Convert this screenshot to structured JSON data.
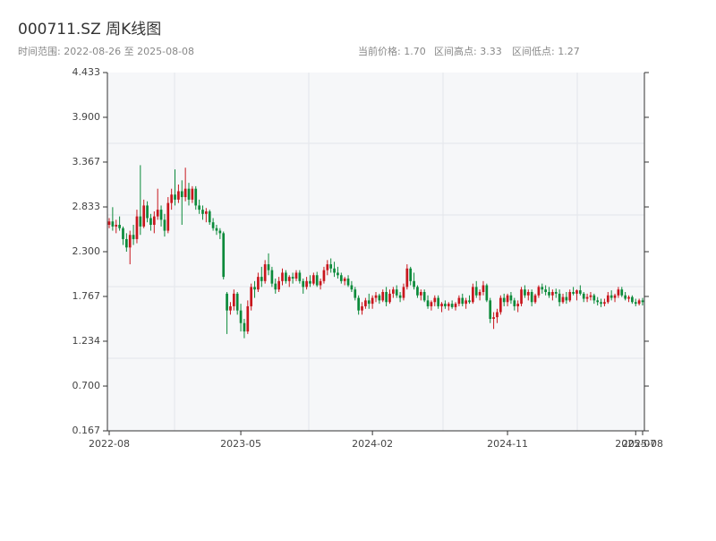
{
  "chart_data": {
    "type": "candlestick",
    "title": "000711.SZ 周K线图",
    "subtitle": "时间范围: 2022-08-26 至 2025-08-08",
    "stats": [
      "当前价格: 1.70",
      "区间高点: 3.33",
      "区间低点: 1.27"
    ],
    "up_color": "#c8161d",
    "down_color": "#0b8a3a",
    "ylim": [
      0.167,
      4.433
    ],
    "yticks": [
      0.167,
      {
        "value": 0.7,
        "label": "0.700"
      },
      1.234,
      1.767,
      {
        "value": 2.3,
        "label": "2.300"
      },
      2.833,
      3.367,
      {
        "value": 3.9,
        "label": "3.900"
      },
      4.433
    ],
    "xlim": [
      "2022-08-26",
      "2025-08-08"
    ],
    "xticks": [
      {
        "value": "2022-08-26",
        "label": "2022-08"
      },
      {
        "value": "2023-05-19",
        "label": "2023-05"
      },
      {
        "value": "2024-02-09",
        "label": "2024-02"
      },
      {
        "value": "2024-11-08",
        "label": "2024-11"
      },
      {
        "value": "2025-07-25",
        "label": "2025-07"
      },
      {
        "value": "2025-08-08",
        "label": "2025-08"
      }
    ],
    "x": [
      "2022-08-26",
      "2022-09-02",
      "2022-09-09",
      "2022-09-16",
      "2022-09-23",
      "2022-09-30",
      "2022-10-07",
      "2022-10-14",
      "2022-10-21",
      "2022-10-28",
      "2022-11-04",
      "2022-11-11",
      "2022-11-18",
      "2022-11-25",
      "2022-12-02",
      "2022-12-09",
      "2022-12-16",
      "2022-12-23",
      "2022-12-30",
      "2023-01-06",
      "2023-01-13",
      "2023-01-20",
      "2023-01-27",
      "2023-02-03",
      "2023-02-10",
      "2023-02-17",
      "2023-02-24",
      "2023-03-03",
      "2023-03-10",
      "2023-03-17",
      "2023-03-24",
      "2023-03-31",
      "2023-04-07",
      "2023-04-14",
      "2023-04-21",
      "2023-04-28",
      "2023-05-05",
      "2023-05-12",
      "2023-05-19",
      "2023-05-26",
      "2023-06-02",
      "2023-06-09",
      "2023-06-16",
      "2023-06-23",
      "2023-06-30",
      "2023-07-07",
      "2023-07-14",
      "2023-07-21",
      "2023-07-28",
      "2023-08-04",
      "2023-08-11",
      "2023-08-18",
      "2023-08-25",
      "2023-09-01",
      "2023-09-08",
      "2023-09-15",
      "2023-09-22",
      "2023-09-29",
      "2023-10-06",
      "2023-10-13",
      "2023-10-20",
      "2023-10-27",
      "2023-11-03",
      "2023-11-10",
      "2023-11-17",
      "2023-11-24",
      "2023-12-01",
      "2023-12-08",
      "2023-12-15",
      "2023-12-22",
      "2023-12-29",
      "2024-01-05",
      "2024-01-12",
      "2024-01-19",
      "2024-01-26",
      "2024-02-02",
      "2024-02-09",
      "2024-02-16",
      "2024-02-23",
      "2024-03-01",
      "2024-03-08",
      "2024-03-15",
      "2024-03-22",
      "2024-03-29",
      "2024-04-05",
      "2024-04-12",
      "2024-04-19",
      "2024-04-26",
      "2024-05-03",
      "2024-05-10",
      "2024-05-17",
      "2024-05-24",
      "2024-05-31",
      "2024-06-07",
      "2024-06-14",
      "2024-06-21",
      "2024-06-28",
      "2024-07-05",
      "2024-07-12",
      "2024-07-19",
      "2024-07-26",
      "2024-08-02",
      "2024-08-09",
      "2024-08-16",
      "2024-08-23",
      "2024-08-30",
      "2024-09-06",
      "2024-09-13",
      "2024-09-20",
      "2024-09-27",
      "2024-10-04",
      "2024-10-11",
      "2024-10-18",
      "2024-10-25",
      "2024-11-01",
      "2024-11-08",
      "2024-11-15",
      "2024-11-22",
      "2024-11-29",
      "2024-12-06",
      "2024-12-13",
      "2024-12-20",
      "2024-12-27",
      "2025-01-03",
      "2025-01-10",
      "2025-01-17",
      "2025-01-24",
      "2025-01-31",
      "2025-02-07",
      "2025-02-14",
      "2025-02-21",
      "2025-02-28",
      "2025-03-07",
      "2025-03-14",
      "2025-03-21",
      "2025-03-28",
      "2025-04-04",
      "2025-04-11",
      "2025-04-18",
      "2025-04-25",
      "2025-05-02",
      "2025-05-09",
      "2025-05-16",
      "2025-05-23",
      "2025-05-30",
      "2025-06-06",
      "2025-06-13",
      "2025-06-20",
      "2025-06-27",
      "2025-07-04",
      "2025-07-11",
      "2025-07-18",
      "2025-07-25",
      "2025-08-01",
      "2025-08-08"
    ],
    "values": [
      [
        2.62,
        2.7,
        2.58,
        2.66
      ],
      [
        2.66,
        2.83,
        2.55,
        2.6
      ],
      [
        2.6,
        2.68,
        2.52,
        2.62
      ],
      [
        2.62,
        2.72,
        2.55,
        2.58
      ],
      [
        2.58,
        2.6,
        2.38,
        2.45
      ],
      [
        2.45,
        2.52,
        2.3,
        2.35
      ],
      [
        2.35,
        2.55,
        2.15,
        2.5
      ],
      [
        2.5,
        2.62,
        2.38,
        2.45
      ],
      [
        2.45,
        2.8,
        2.4,
        2.72
      ],
      [
        2.72,
        3.33,
        2.5,
        2.6
      ],
      [
        2.6,
        2.92,
        2.58,
        2.85
      ],
      [
        2.85,
        2.9,
        2.65,
        2.7
      ],
      [
        2.7,
        2.75,
        2.55,
        2.62
      ],
      [
        2.62,
        2.78,
        2.52,
        2.72
      ],
      [
        2.72,
        3.05,
        2.68,
        2.8
      ],
      [
        2.8,
        2.85,
        2.6,
        2.68
      ],
      [
        2.68,
        2.75,
        2.48,
        2.55
      ],
      [
        2.55,
        2.95,
        2.52,
        2.88
      ],
      [
        2.88,
        3.05,
        2.8,
        2.98
      ],
      [
        2.98,
        3.28,
        2.85,
        2.92
      ],
      [
        2.92,
        3.1,
        2.88,
        3.02
      ],
      [
        3.02,
        3.15,
        2.62,
        2.95
      ],
      [
        2.95,
        3.3,
        2.9,
        3.05
      ],
      [
        3.05,
        3.12,
        2.85,
        2.92
      ],
      [
        2.92,
        3.08,
        2.88,
        3.05
      ],
      [
        3.05,
        3.08,
        2.8,
        2.85
      ],
      [
        2.85,
        2.92,
        2.75,
        2.8
      ],
      [
        2.8,
        2.85,
        2.68,
        2.75
      ],
      [
        2.75,
        2.82,
        2.65,
        2.78
      ],
      [
        2.78,
        2.8,
        2.62,
        2.65
      ],
      [
        2.65,
        2.7,
        2.55,
        2.58
      ],
      [
        2.58,
        2.62,
        2.5,
        2.55
      ],
      [
        2.55,
        2.58,
        2.45,
        2.52
      ],
      [
        2.52,
        2.54,
        1.97,
        2.0
      ],
      [
        1.8,
        1.82,
        1.32,
        1.6
      ],
      [
        1.6,
        1.7,
        1.55,
        1.65
      ],
      [
        1.65,
        1.85,
        1.6,
        1.8
      ],
      [
        1.8,
        1.82,
        1.55,
        1.6
      ],
      [
        1.6,
        1.68,
        1.35,
        1.45
      ],
      [
        1.45,
        1.5,
        1.27,
        1.35
      ],
      [
        1.35,
        1.72,
        1.32,
        1.65
      ],
      [
        1.65,
        1.92,
        1.6,
        1.88
      ],
      [
        1.88,
        1.95,
        1.75,
        1.85
      ],
      [
        1.85,
        2.05,
        1.82,
        2.0
      ],
      [
        2.0,
        2.12,
        1.88,
        1.95
      ],
      [
        1.95,
        2.2,
        1.92,
        2.15
      ],
      [
        2.15,
        2.28,
        2.02,
        2.08
      ],
      [
        2.08,
        2.12,
        1.88,
        1.92
      ],
      [
        1.92,
        1.98,
        1.8,
        1.85
      ],
      [
        1.85,
        2.0,
        1.82,
        1.95
      ],
      [
        1.95,
        2.1,
        1.9,
        2.05
      ],
      [
        2.05,
        2.08,
        1.92,
        1.95
      ],
      [
        1.95,
        2.02,
        1.88,
        2.0
      ],
      [
        2.0,
        2.05,
        1.92,
        1.98
      ],
      [
        1.98,
        2.08,
        1.95,
        2.05
      ],
      [
        2.05,
        2.08,
        1.92,
        1.95
      ],
      [
        1.95,
        1.98,
        1.8,
        1.88
      ],
      [
        1.88,
        2.0,
        1.85,
        1.95
      ],
      [
        1.95,
        2.02,
        1.88,
        1.92
      ],
      [
        1.92,
        2.05,
        1.9,
        2.02
      ],
      [
        2.02,
        2.06,
        1.88,
        1.9
      ],
      [
        1.9,
        1.98,
        1.85,
        1.95
      ],
      [
        1.95,
        2.12,
        1.92,
        2.08
      ],
      [
        2.08,
        2.2,
        2.02,
        2.15
      ],
      [
        2.15,
        2.22,
        2.05,
        2.1
      ],
      [
        2.1,
        2.18,
        2.0,
        2.05
      ],
      [
        2.05,
        2.12,
        1.98,
        2.02
      ],
      [
        2.02,
        2.05,
        1.92,
        1.95
      ],
      [
        1.95,
        2.0,
        1.9,
        1.98
      ],
      [
        1.98,
        2.02,
        1.88,
        1.9
      ],
      [
        1.9,
        1.95,
        1.82,
        1.85
      ],
      [
        1.85,
        1.88,
        1.72,
        1.75
      ],
      [
        1.75,
        1.78,
        1.55,
        1.6
      ],
      [
        1.6,
        1.7,
        1.55,
        1.65
      ],
      [
        1.65,
        1.75,
        1.62,
        1.72
      ],
      [
        1.72,
        1.8,
        1.62,
        1.68
      ],
      [
        1.68,
        1.78,
        1.62,
        1.75
      ],
      [
        1.75,
        1.82,
        1.7,
        1.78
      ],
      [
        1.78,
        1.8,
        1.68,
        1.72
      ],
      [
        1.72,
        1.85,
        1.7,
        1.82
      ],
      [
        1.82,
        1.88,
        1.65,
        1.7
      ],
      [
        1.7,
        1.85,
        1.68,
        1.8
      ],
      [
        1.8,
        1.88,
        1.75,
        1.85
      ],
      [
        1.85,
        1.9,
        1.75,
        1.78
      ],
      [
        1.78,
        1.82,
        1.7,
        1.75
      ],
      [
        1.75,
        1.92,
        1.72,
        1.88
      ],
      [
        1.88,
        2.15,
        1.85,
        2.1
      ],
      [
        2.1,
        2.12,
        1.9,
        1.95
      ],
      [
        1.95,
        2.05,
        1.85,
        1.88
      ],
      [
        1.88,
        1.9,
        1.75,
        1.78
      ],
      [
        1.78,
        1.85,
        1.72,
        1.82
      ],
      [
        1.82,
        1.85,
        1.7,
        1.72
      ],
      [
        1.72,
        1.78,
        1.62,
        1.65
      ],
      [
        1.65,
        1.72,
        1.6,
        1.7
      ],
      [
        1.7,
        1.78,
        1.65,
        1.75
      ],
      [
        1.75,
        1.78,
        1.62,
        1.65
      ],
      [
        1.65,
        1.7,
        1.58,
        1.68
      ],
      [
        1.68,
        1.72,
        1.62,
        1.65
      ],
      [
        1.65,
        1.7,
        1.6,
        1.68
      ],
      [
        1.68,
        1.72,
        1.62,
        1.64
      ],
      [
        1.64,
        1.7,
        1.6,
        1.68
      ],
      [
        1.68,
        1.78,
        1.65,
        1.75
      ],
      [
        1.75,
        1.8,
        1.65,
        1.68
      ],
      [
        1.68,
        1.75,
        1.62,
        1.72
      ],
      [
        1.72,
        1.78,
        1.68,
        1.7
      ],
      [
        1.7,
        1.92,
        1.68,
        1.88
      ],
      [
        1.88,
        1.95,
        1.75,
        1.78
      ],
      [
        1.78,
        1.85,
        1.72,
        1.82
      ],
      [
        1.82,
        1.95,
        1.78,
        1.9
      ],
      [
        1.9,
        1.92,
        1.7,
        1.72
      ],
      [
        1.72,
        1.75,
        1.45,
        1.5
      ],
      [
        1.5,
        1.58,
        1.38,
        1.52
      ],
      [
        1.52,
        1.62,
        1.45,
        1.58
      ],
      [
        1.58,
        1.78,
        1.55,
        1.75
      ],
      [
        1.75,
        1.8,
        1.65,
        1.7
      ],
      [
        1.7,
        1.8,
        1.65,
        1.78
      ],
      [
        1.78,
        1.82,
        1.68,
        1.72
      ],
      [
        1.72,
        1.75,
        1.6,
        1.65
      ],
      [
        1.65,
        1.72,
        1.58,
        1.68
      ],
      [
        1.68,
        1.88,
        1.65,
        1.85
      ],
      [
        1.85,
        1.9,
        1.75,
        1.78
      ],
      [
        1.78,
        1.85,
        1.72,
        1.82
      ],
      [
        1.82,
        1.85,
        1.65,
        1.7
      ],
      [
        1.7,
        1.8,
        1.68,
        1.78
      ],
      [
        1.78,
        1.9,
        1.75,
        1.88
      ],
      [
        1.88,
        1.92,
        1.8,
        1.85
      ],
      [
        1.85,
        1.9,
        1.78,
        1.82
      ],
      [
        1.82,
        1.88,
        1.75,
        1.78
      ],
      [
        1.78,
        1.85,
        1.72,
        1.82
      ],
      [
        1.82,
        1.86,
        1.75,
        1.8
      ],
      [
        1.8,
        1.85,
        1.65,
        1.7
      ],
      [
        1.7,
        1.8,
        1.68,
        1.76
      ],
      [
        1.76,
        1.82,
        1.68,
        1.72
      ],
      [
        1.72,
        1.85,
        1.7,
        1.82
      ],
      [
        1.82,
        1.88,
        1.78,
        1.8
      ],
      [
        1.8,
        1.85,
        1.72,
        1.84
      ],
      [
        1.84,
        1.9,
        1.78,
        1.8
      ],
      [
        1.8,
        1.82,
        1.7,
        1.74
      ],
      [
        1.74,
        1.8,
        1.7,
        1.76
      ],
      [
        1.76,
        1.82,
        1.72,
        1.78
      ],
      [
        1.78,
        1.8,
        1.68,
        1.72
      ],
      [
        1.72,
        1.76,
        1.66,
        1.7
      ],
      [
        1.7,
        1.74,
        1.64,
        1.68
      ],
      [
        1.68,
        1.74,
        1.65,
        1.7
      ],
      [
        1.7,
        1.82,
        1.68,
        1.78
      ],
      [
        1.78,
        1.84,
        1.72,
        1.75
      ],
      [
        1.75,
        1.8,
        1.7,
        1.78
      ],
      [
        1.78,
        1.88,
        1.75,
        1.85
      ],
      [
        1.85,
        1.88,
        1.76,
        1.78
      ],
      [
        1.78,
        1.82,
        1.72,
        1.74
      ],
      [
        1.74,
        1.78,
        1.7,
        1.76
      ],
      [
        1.76,
        1.78,
        1.68,
        1.7
      ],
      [
        1.7,
        1.74,
        1.65,
        1.68
      ],
      [
        1.68,
        1.74,
        1.66,
        1.72
      ],
      [
        1.72,
        1.75,
        1.66,
        1.7
      ]
    ]
  }
}
